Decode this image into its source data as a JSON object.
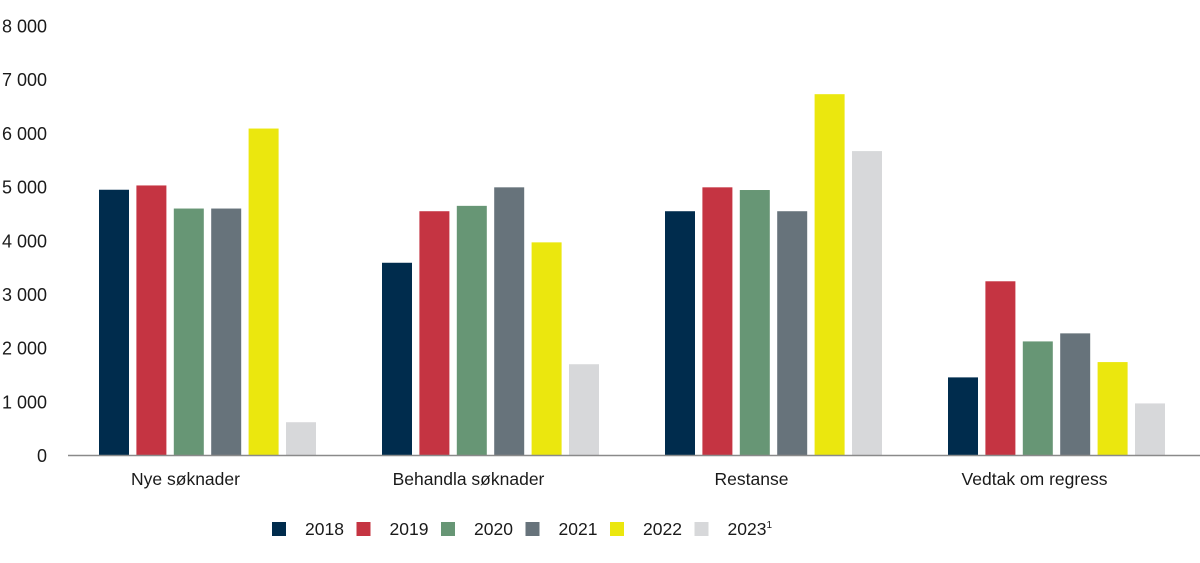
{
  "chart_data": {
    "type": "bar",
    "categories": [
      "Nye søknader",
      "Behandla søknader",
      "Restanse",
      "Vedtak om regress"
    ],
    "series": [
      {
        "name": "2018",
        "color": "#002c4d",
        "values": [
          4950,
          3590,
          4550,
          1455
        ]
      },
      {
        "name": "2019",
        "color": "#c53442",
        "values": [
          5030,
          4550,
          4995,
          3245
        ]
      },
      {
        "name": "2020",
        "color": "#679675",
        "values": [
          4600,
          4650,
          4945,
          2125
        ]
      },
      {
        "name": "2021",
        "color": "#67737b",
        "values": [
          4600,
          4995,
          4550,
          2275
        ]
      },
      {
        "name": "2022",
        "color": "#ebe70e",
        "values": [
          6090,
          3970,
          6730,
          1740
        ]
      },
      {
        "name": "2023",
        "name_superscript": "1",
        "color": "#d7d8da",
        "values": [
          620,
          1700,
          5670,
          970
        ]
      }
    ],
    "yticks": [
      "0",
      "1 000",
      "2 000",
      "3 000",
      "4 000",
      "5 000",
      "6 000",
      "7 000",
      "8 000"
    ],
    "ylim": [
      0,
      8000
    ],
    "grid": false,
    "legend_position": "bottom",
    "title": "",
    "xlabel": "",
    "ylabel": ""
  }
}
